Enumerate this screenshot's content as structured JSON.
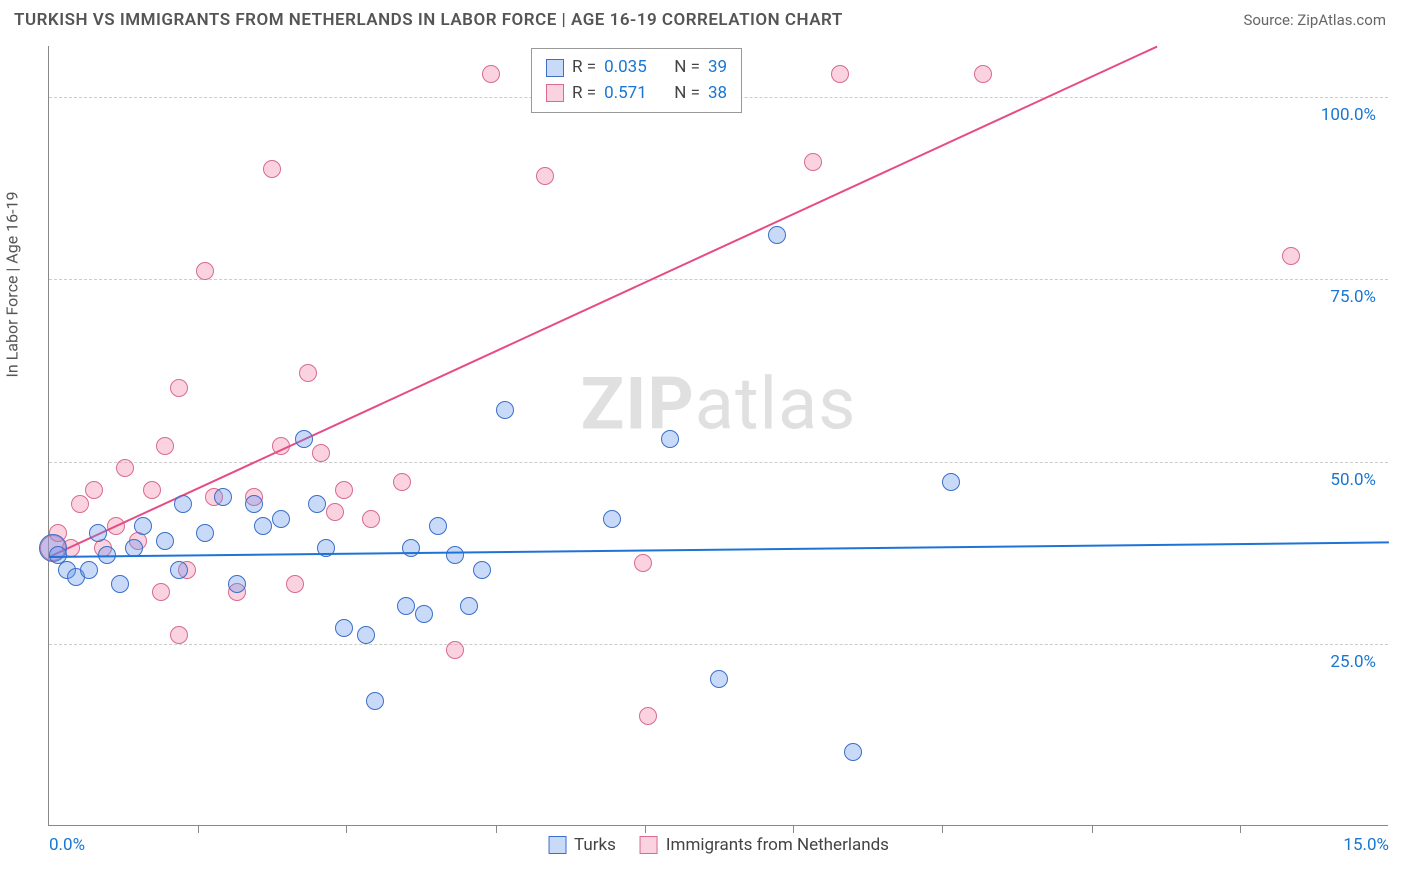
{
  "header": {
    "title": "TURKISH VS IMMIGRANTS FROM NETHERLANDS IN LABOR FORCE | AGE 16-19 CORRELATION CHART",
    "source": "Source: ZipAtlas.com"
  },
  "axes": {
    "y_label": "In Labor Force | Age 16-19",
    "x_min": 0.0,
    "x_max": 15.0,
    "y_min": 0.0,
    "y_max": 107.0,
    "x_ticks": [
      0.0,
      15.0
    ],
    "x_tick_labels": [
      "0.0%",
      "15.0%"
    ],
    "x_tick_marks": [
      1.67,
      3.33,
      5.0,
      6.67,
      8.33,
      10.0,
      11.67,
      13.33
    ],
    "y_gridlines": [
      25.0,
      50.0,
      75.0,
      100.0
    ],
    "y_tick_labels": [
      "25.0%",
      "50.0%",
      "75.0%",
      "100.0%"
    ],
    "grid_color": "#cccccc",
    "axis_color": "#888888",
    "ytick_color": "#1976d2",
    "xtick_color": "#1976d2"
  },
  "series": {
    "turks": {
      "label": "Turks",
      "fill": "rgba(100,149,237,0.35)",
      "stroke": "#3b6fc9",
      "R": "0.035",
      "N": "39",
      "trend": {
        "x1": 0.0,
        "y1": 37.0,
        "x2": 15.0,
        "y2": 39.0,
        "color": "#1e74d6",
        "width": 2
      },
      "marker_radius": 9,
      "points": [
        {
          "x": 0.05,
          "y": 38,
          "r": 14
        },
        {
          "x": 0.1,
          "y": 37
        },
        {
          "x": 0.2,
          "y": 35
        },
        {
          "x": 0.3,
          "y": 34
        },
        {
          "x": 0.45,
          "y": 35
        },
        {
          "x": 0.55,
          "y": 40
        },
        {
          "x": 0.65,
          "y": 37
        },
        {
          "x": 0.8,
          "y": 33
        },
        {
          "x": 0.95,
          "y": 38
        },
        {
          "x": 1.05,
          "y": 41
        },
        {
          "x": 1.3,
          "y": 39
        },
        {
          "x": 1.45,
          "y": 35
        },
        {
          "x": 1.5,
          "y": 44
        },
        {
          "x": 1.75,
          "y": 40
        },
        {
          "x": 1.95,
          "y": 45
        },
        {
          "x": 2.1,
          "y": 33
        },
        {
          "x": 2.3,
          "y": 44
        },
        {
          "x": 2.4,
          "y": 41
        },
        {
          "x": 2.6,
          "y": 42
        },
        {
          "x": 2.85,
          "y": 53
        },
        {
          "x": 3.0,
          "y": 44
        },
        {
          "x": 3.1,
          "y": 38
        },
        {
          "x": 3.3,
          "y": 27
        },
        {
          "x": 3.55,
          "y": 26
        },
        {
          "x": 3.65,
          "y": 17
        },
        {
          "x": 4.0,
          "y": 30
        },
        {
          "x": 4.2,
          "y": 29
        },
        {
          "x": 4.05,
          "y": 38
        },
        {
          "x": 4.35,
          "y": 41
        },
        {
          "x": 4.55,
          "y": 37
        },
        {
          "x": 4.7,
          "y": 30
        },
        {
          "x": 4.85,
          "y": 35
        },
        {
          "x": 5.1,
          "y": 57
        },
        {
          "x": 6.3,
          "y": 42
        },
        {
          "x": 6.95,
          "y": 53
        },
        {
          "x": 7.5,
          "y": 20
        },
        {
          "x": 8.15,
          "y": 81
        },
        {
          "x": 9.0,
          "y": 10
        },
        {
          "x": 10.1,
          "y": 47
        }
      ]
    },
    "netherlands": {
      "label": "Immigrants from Netherlands",
      "fill": "rgba(244,143,177,0.4)",
      "stroke": "#d86b8f",
      "R": "0.571",
      "N": "38",
      "trend": {
        "x1": 0.0,
        "y1": 37.0,
        "x2": 12.4,
        "y2": 107.0,
        "color": "#e64b85",
        "width": 2
      },
      "marker_radius": 9,
      "points": [
        {
          "x": 0.05,
          "y": 38,
          "r": 13
        },
        {
          "x": 0.1,
          "y": 40
        },
        {
          "x": 0.25,
          "y": 38
        },
        {
          "x": 0.35,
          "y": 44
        },
        {
          "x": 0.5,
          "y": 46
        },
        {
          "x": 0.6,
          "y": 38
        },
        {
          "x": 0.75,
          "y": 41
        },
        {
          "x": 0.85,
          "y": 49
        },
        {
          "x": 1.0,
          "y": 39
        },
        {
          "x": 1.15,
          "y": 46
        },
        {
          "x": 1.25,
          "y": 32
        },
        {
          "x": 1.3,
          "y": 52
        },
        {
          "x": 1.45,
          "y": 60
        },
        {
          "x": 1.45,
          "y": 26
        },
        {
          "x": 1.55,
          "y": 35
        },
        {
          "x": 1.75,
          "y": 76
        },
        {
          "x": 1.85,
          "y": 45
        },
        {
          "x": 2.1,
          "y": 32
        },
        {
          "x": 2.3,
          "y": 45
        },
        {
          "x": 2.5,
          "y": 90
        },
        {
          "x": 2.6,
          "y": 52
        },
        {
          "x": 2.75,
          "y": 33
        },
        {
          "x": 2.9,
          "y": 62
        },
        {
          "x": 3.05,
          "y": 51
        },
        {
          "x": 3.2,
          "y": 43
        },
        {
          "x": 3.3,
          "y": 46
        },
        {
          "x": 3.6,
          "y": 42
        },
        {
          "x": 3.95,
          "y": 47
        },
        {
          "x": 4.55,
          "y": 24
        },
        {
          "x": 4.95,
          "y": 103
        },
        {
          "x": 5.55,
          "y": 89
        },
        {
          "x": 5.8,
          "y": 102
        },
        {
          "x": 6.65,
          "y": 36
        },
        {
          "x": 6.7,
          "y": 15
        },
        {
          "x": 8.55,
          "y": 91
        },
        {
          "x": 8.85,
          "y": 103
        },
        {
          "x": 10.45,
          "y": 103
        },
        {
          "x": 13.9,
          "y": 78
        }
      ]
    }
  },
  "legend": {
    "info_box": {
      "R_label": "R =",
      "N_label": "N ="
    },
    "bottom": [
      "Turks",
      "Immigrants from Netherlands"
    ]
  },
  "watermark": {
    "part1": "ZIP",
    "part2": "atlas"
  },
  "styling": {
    "background": "#ffffff",
    "title_color": "#555555",
    "font_family": "Arial, sans-serif"
  }
}
